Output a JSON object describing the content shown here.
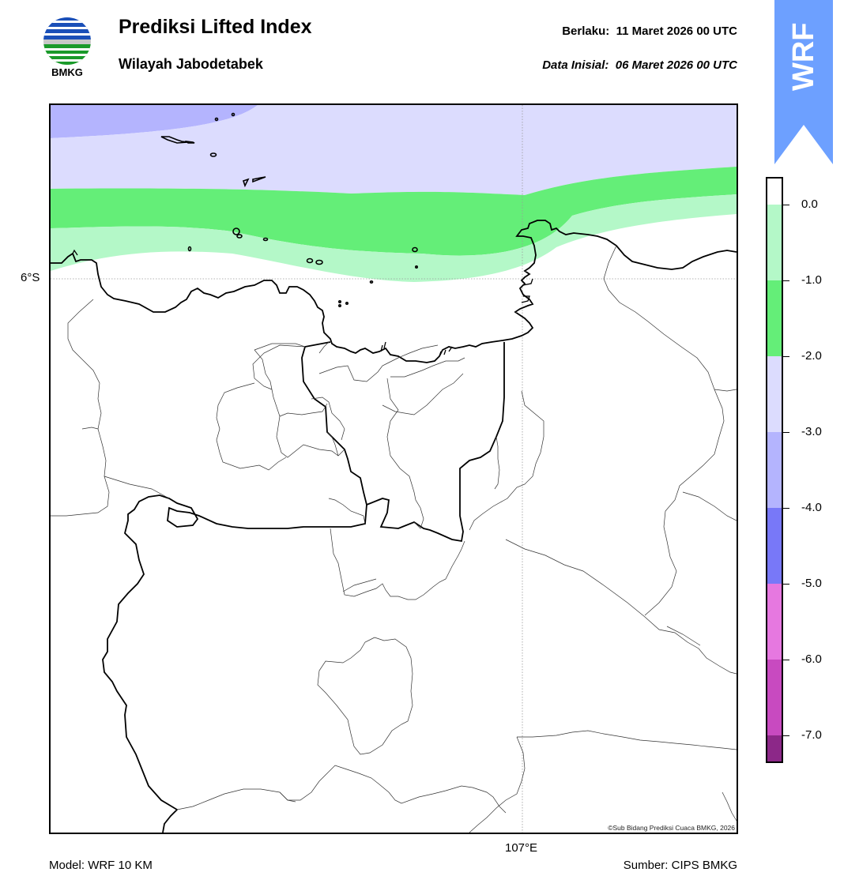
{
  "header": {
    "logo_text": "BMKG",
    "title": "Prediksi Lifted Index",
    "subtitle": "Wilayah Jabodetabek",
    "valid_label": "Berlaku:",
    "valid_value": "11 Maret 2026 00 UTC",
    "init_label": "Data Inisial:",
    "init_value": "06 Maret 2026 00 UTC"
  },
  "badge": {
    "text": "WRF",
    "color": "#6da0ff"
  },
  "map": {
    "lat_label": "6°S",
    "lon_label": "107°E",
    "credit": "©Sub Bidang Prediksi Cuaca BMKG, 2026"
  },
  "footer": {
    "model": "Model: WRF 10 KM",
    "source": "Sumber: CIPS BMKG"
  },
  "colorbar": {
    "ticks": [
      "0.0",
      "-1.0",
      "-2.0",
      "-3.0",
      "-4.0",
      "-5.0",
      "-6.0",
      "-7.0"
    ],
    "colors": {
      "above_0": "#ffffff",
      "0_to_-1": "#b4f8c8",
      "-1_to_-2": "#64ee78",
      "-2_to_-3": "#dcdcfe",
      "-3_to_-4": "#b4b4fe",
      "-4_to_-5": "#7878f8",
      "-5_to_-6": "#e678e0",
      "-6_to_-7": "#c84ac0",
      "below_-7": "#8c2888"
    }
  }
}
